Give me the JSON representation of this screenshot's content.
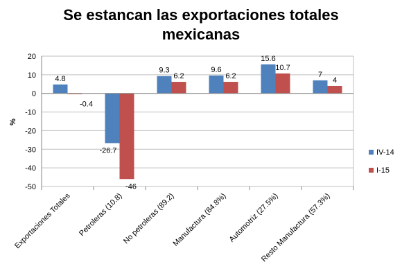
{
  "chart_data": {
    "type": "bar",
    "title_lines": [
      "Se estancan las exportaciones totales",
      "mexicanas"
    ],
    "ylabel": "%",
    "xlabel": "",
    "ylim": [
      -50,
      20
    ],
    "yticks": [
      20,
      10,
      0,
      -10,
      -20,
      -30,
      -40,
      -50
    ],
    "grid": true,
    "legend_position": "right",
    "categories": [
      "Exportaciones Totales",
      "Petroleras (10.8)",
      "No petroleras (89.2)",
      "Manufactura (84.8%)",
      "Automotriz (27.5%)",
      "Resto Manufactura (57.3%)"
    ],
    "series": [
      {
        "name": "IV-14",
        "color": "#4F81BD",
        "values": [
          4.8,
          -26.7,
          9.3,
          9.6,
          15.6,
          7
        ],
        "labels": [
          "4.8",
          "-26.7",
          "9.3",
          "9.6",
          "15.6",
          "7"
        ]
      },
      {
        "name": "I-15",
        "color": "#C0504D",
        "values": [
          -0.4,
          -46,
          6.2,
          6.2,
          10.7,
          4
        ],
        "labels": [
          "-0.4",
          "-46",
          "6.2",
          "6.2",
          "10.7",
          "4"
        ]
      }
    ]
  }
}
